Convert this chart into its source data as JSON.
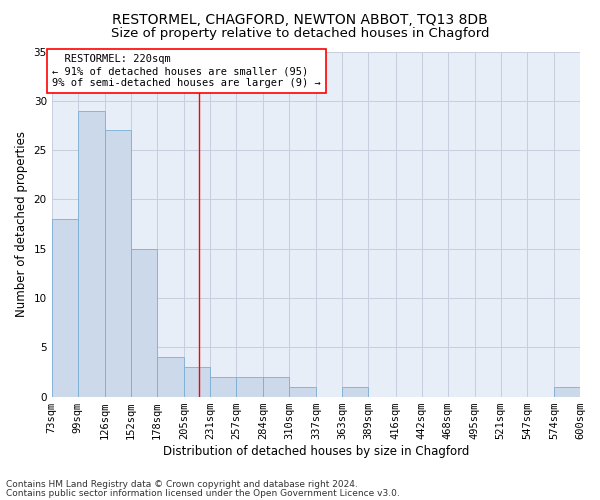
{
  "title1": "RESTORMEL, CHAGFORD, NEWTON ABBOT, TQ13 8DB",
  "title2": "Size of property relative to detached houses in Chagford",
  "xlabel": "Distribution of detached houses by size in Chagford",
  "ylabel": "Number of detached properties",
  "footnote1": "Contains HM Land Registry data © Crown copyright and database right 2024.",
  "footnote2": "Contains public sector information licensed under the Open Government Licence v3.0.",
  "bar_color": "#ccd9ea",
  "bar_edge_color": "#7aafd4",
  "background_color": "#e8eef8",
  "grid_color": "#c8cede",
  "annotation_text": "  RESTORMEL: 220sqm\n← 91% of detached houses are smaller (95)\n9% of semi-detached houses are larger (9) →",
  "vline_x": 220,
  "vline_color": "red",
  "bins": [
    73,
    99,
    126,
    152,
    178,
    205,
    231,
    257,
    284,
    310,
    337,
    363,
    389,
    416,
    442,
    468,
    495,
    521,
    547,
    574,
    600
  ],
  "bar_heights": [
    18,
    29,
    27,
    15,
    4,
    3,
    2,
    2,
    2,
    1,
    0,
    1,
    0,
    0,
    0,
    0,
    0,
    0,
    0,
    1
  ],
  "ylim": [
    0,
    35
  ],
  "yticks": [
    0,
    5,
    10,
    15,
    20,
    25,
    30,
    35
  ],
  "title1_fontsize": 10,
  "title2_fontsize": 9.5,
  "axis_label_fontsize": 8.5,
  "tick_fontsize": 7.5,
  "annotation_fontsize": 7.5,
  "footnote_fontsize": 6.5
}
